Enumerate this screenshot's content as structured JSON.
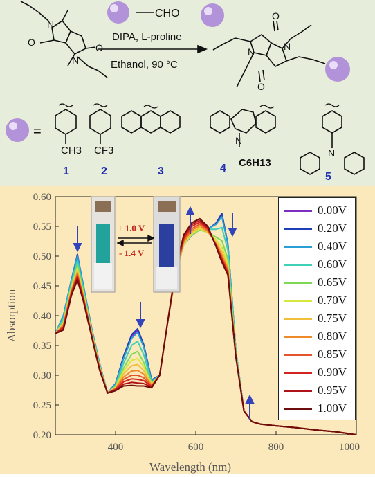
{
  "scheme": {
    "reagent": "CHO",
    "conditions_top": "DIPA, L-proline",
    "conditions_bottom": "Ethanol, 90 °C",
    "equals": "=",
    "substituents": [
      {
        "label": "1",
        "group": "CH3"
      },
      {
        "label": "2",
        "group": "CF3"
      },
      {
        "label": "3",
        "group": ""
      },
      {
        "label": "4",
        "group": "C6H13"
      },
      {
        "label": "5",
        "group": ""
      }
    ],
    "ring_atoms": {
      "N": "N",
      "O": "O"
    },
    "colors": {
      "sphere": "#b292d8",
      "label_blue": "#1f2fb0",
      "bond": "#111111"
    }
  },
  "photo": {
    "oxidation": "+ 1.0 V",
    "reduction": "- 1.4 V"
  },
  "chart_data": {
    "type": "line",
    "xlabel": "Wavelength (nm)",
    "ylabel": "Absorption",
    "xlim": [
      250,
      1000
    ],
    "ylim": [
      0.2,
      0.6
    ],
    "xticks": [
      "400",
      "600",
      "800",
      "1000"
    ],
    "yticks": [
      "0.20",
      "0.25",
      "0.30",
      "0.35",
      "0.40",
      "0.45",
      "0.50",
      "0.55",
      "0.60"
    ],
    "legend_position": "top-right",
    "x": [
      250,
      270,
      290,
      305,
      320,
      340,
      360,
      380,
      400,
      420,
      440,
      455,
      470,
      490,
      510,
      530,
      550,
      570,
      590,
      610,
      630,
      650,
      665,
      680,
      700,
      720,
      740,
      760,
      800,
      850,
      900,
      950,
      1000
    ],
    "series": [
      {
        "name": "0.00V",
        "color": "#7b2fbe",
        "values": [
          0.37,
          0.4,
          0.46,
          0.5,
          0.45,
          0.38,
          0.32,
          0.27,
          0.285,
          0.33,
          0.365,
          0.375,
          0.35,
          0.29,
          0.3,
          0.39,
          0.47,
          0.52,
          0.535,
          0.545,
          0.545,
          0.555,
          0.57,
          0.52,
          0.34,
          0.24,
          0.222,
          0.218,
          0.215,
          0.212,
          0.208,
          0.205,
          0.2
        ]
      },
      {
        "name": "0.20V",
        "color": "#1f3fb8",
        "values": [
          0.37,
          0.4,
          0.46,
          0.503,
          0.45,
          0.38,
          0.32,
          0.27,
          0.286,
          0.332,
          0.368,
          0.378,
          0.352,
          0.292,
          0.3,
          0.39,
          0.47,
          0.52,
          0.535,
          0.545,
          0.545,
          0.555,
          0.572,
          0.52,
          0.34,
          0.24,
          0.222,
          0.218,
          0.215,
          0.212,
          0.208,
          0.205,
          0.2
        ]
      },
      {
        "name": "0.40V",
        "color": "#2a9fd6",
        "values": [
          0.37,
          0.4,
          0.46,
          0.5,
          0.45,
          0.38,
          0.32,
          0.27,
          0.285,
          0.328,
          0.362,
          0.372,
          0.348,
          0.29,
          0.3,
          0.39,
          0.47,
          0.52,
          0.535,
          0.545,
          0.546,
          0.553,
          0.566,
          0.52,
          0.34,
          0.24,
          0.222,
          0.218,
          0.215,
          0.212,
          0.208,
          0.205,
          0.2
        ]
      },
      {
        "name": "0.60V",
        "color": "#3fd0b8",
        "values": [
          0.37,
          0.395,
          0.455,
          0.492,
          0.445,
          0.377,
          0.318,
          0.27,
          0.283,
          0.32,
          0.35,
          0.357,
          0.335,
          0.288,
          0.3,
          0.39,
          0.47,
          0.52,
          0.536,
          0.545,
          0.545,
          0.545,
          0.548,
          0.51,
          0.34,
          0.24,
          0.222,
          0.218,
          0.215,
          0.212,
          0.208,
          0.205,
          0.2
        ]
      },
      {
        "name": "0.65V",
        "color": "#7ed957",
        "values": [
          0.37,
          0.39,
          0.45,
          0.485,
          0.44,
          0.375,
          0.316,
          0.27,
          0.281,
          0.312,
          0.335,
          0.34,
          0.322,
          0.286,
          0.3,
          0.39,
          0.47,
          0.52,
          0.536,
          0.544,
          0.54,
          0.532,
          0.526,
          0.495,
          0.335,
          0.24,
          0.222,
          0.218,
          0.215,
          0.212,
          0.208,
          0.205,
          0.2
        ]
      },
      {
        "name": "0.70V",
        "color": "#d8e640",
        "values": [
          0.37,
          0.388,
          0.448,
          0.48,
          0.437,
          0.373,
          0.315,
          0.27,
          0.28,
          0.307,
          0.325,
          0.328,
          0.315,
          0.285,
          0.3,
          0.39,
          0.47,
          0.52,
          0.537,
          0.546,
          0.54,
          0.528,
          0.515,
          0.488,
          0.333,
          0.24,
          0.222,
          0.218,
          0.215,
          0.212,
          0.208,
          0.205,
          0.2
        ]
      },
      {
        "name": "0.75V",
        "color": "#f2bf3a",
        "values": [
          0.37,
          0.386,
          0.445,
          0.476,
          0.434,
          0.372,
          0.314,
          0.27,
          0.279,
          0.302,
          0.316,
          0.318,
          0.308,
          0.284,
          0.3,
          0.39,
          0.47,
          0.522,
          0.54,
          0.548,
          0.54,
          0.524,
          0.508,
          0.482,
          0.332,
          0.24,
          0.222,
          0.218,
          0.215,
          0.212,
          0.208,
          0.205,
          0.2
        ]
      },
      {
        "name": "0.80V",
        "color": "#ef8a2a",
        "values": [
          0.37,
          0.384,
          0.442,
          0.472,
          0.432,
          0.37,
          0.313,
          0.27,
          0.278,
          0.297,
          0.307,
          0.308,
          0.302,
          0.283,
          0.3,
          0.39,
          0.472,
          0.524,
          0.543,
          0.551,
          0.542,
          0.522,
          0.502,
          0.478,
          0.331,
          0.24,
          0.222,
          0.218,
          0.215,
          0.212,
          0.208,
          0.205,
          0.2
        ]
      },
      {
        "name": "0.85V",
        "color": "#e5542a",
        "values": [
          0.37,
          0.382,
          0.44,
          0.469,
          0.43,
          0.369,
          0.312,
          0.27,
          0.277,
          0.293,
          0.3,
          0.3,
          0.296,
          0.282,
          0.3,
          0.39,
          0.474,
          0.527,
          0.546,
          0.554,
          0.544,
          0.52,
          0.498,
          0.475,
          0.33,
          0.24,
          0.222,
          0.218,
          0.215,
          0.212,
          0.208,
          0.205,
          0.2
        ]
      },
      {
        "name": "0.90V",
        "color": "#d4241f",
        "values": [
          0.37,
          0.38,
          0.438,
          0.466,
          0.428,
          0.368,
          0.311,
          0.27,
          0.276,
          0.289,
          0.294,
          0.293,
          0.291,
          0.281,
          0.3,
          0.39,
          0.476,
          0.53,
          0.55,
          0.557,
          0.546,
          0.519,
          0.495,
          0.472,
          0.33,
          0.24,
          0.222,
          0.218,
          0.215,
          0.212,
          0.208,
          0.205,
          0.2
        ]
      },
      {
        "name": "0.95V",
        "color": "#b0121a",
        "values": [
          0.37,
          0.378,
          0.436,
          0.463,
          0.426,
          0.367,
          0.31,
          0.27,
          0.275,
          0.285,
          0.288,
          0.287,
          0.286,
          0.28,
          0.3,
          0.39,
          0.478,
          0.533,
          0.553,
          0.56,
          0.548,
          0.518,
          0.493,
          0.47,
          0.33,
          0.24,
          0.222,
          0.218,
          0.215,
          0.212,
          0.208,
          0.205,
          0.2
        ]
      },
      {
        "name": "1.00V",
        "color": "#6e0d0d",
        "values": [
          0.37,
          0.376,
          0.434,
          0.46,
          0.424,
          0.366,
          0.309,
          0.27,
          0.274,
          0.282,
          0.283,
          0.282,
          0.282,
          0.279,
          0.3,
          0.39,
          0.48,
          0.536,
          0.556,
          0.563,
          0.55,
          0.517,
          0.49,
          0.468,
          0.33,
          0.24,
          0.222,
          0.218,
          0.215,
          0.212,
          0.208,
          0.205,
          0.2
        ]
      }
    ]
  }
}
